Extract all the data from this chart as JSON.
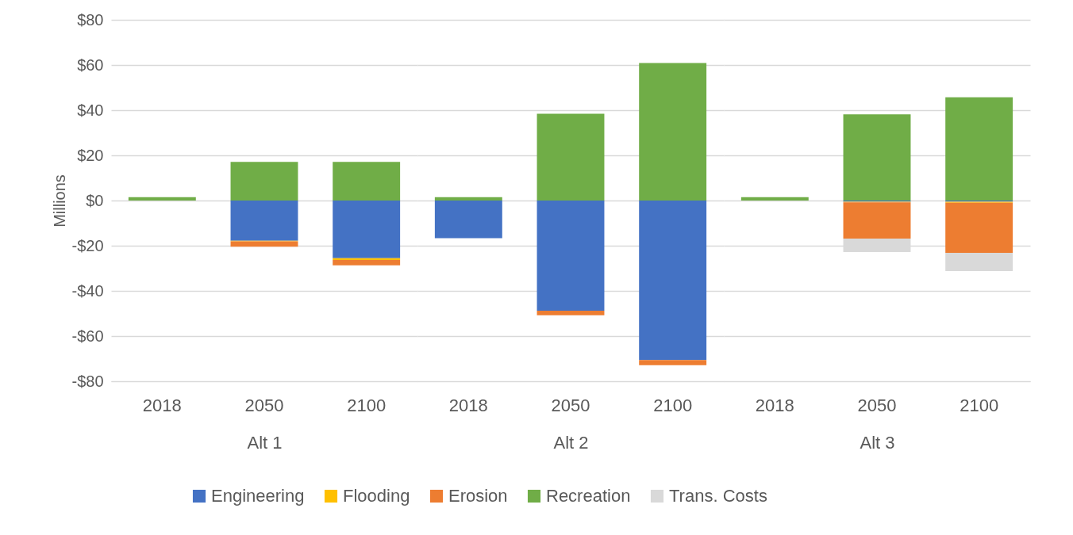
{
  "chart_data": [
    {
      "type": "bar",
      "stacked": true,
      "xlabel": "Alt 1",
      "ylabel": "Millions",
      "categories": [
        "2018",
        "2050",
        "2100"
      ],
      "ylim": [
        -80,
        80
      ],
      "yticks": [
        {
          "value": -80,
          "label": "-$80"
        },
        {
          "value": -60,
          "label": "-$60"
        },
        {
          "value": -40,
          "label": "-$40"
        },
        {
          "value": -20,
          "label": "-$20"
        },
        {
          "value": 0,
          "label": "$0"
        },
        {
          "value": 20,
          "label": "$20"
        },
        {
          "value": 40,
          "label": "$40"
        },
        {
          "value": 60,
          "label": "$60"
        },
        {
          "value": 80,
          "label": "$80"
        }
      ],
      "grid": "y",
      "legend": "bottom",
      "series": [
        {
          "name": "Engineering",
          "color": "#4472c4",
          "values": [
            null,
            -17.8,
            -25.5
          ]
        },
        {
          "name": "Flooding",
          "color": "#ffc000",
          "values": [
            null,
            -0.3,
            -0.8
          ]
        },
        {
          "name": "Erosion",
          "color": "#ed7d31",
          "values": [
            null,
            -2.3,
            -2.4
          ]
        },
        {
          "name": "Recreation",
          "color": "#70ad47",
          "values": [
            1.5,
            17.1,
            17.1
          ]
        },
        {
          "name": "Trans. Costs",
          "color": "#d9d9d9",
          "values": [
            null,
            null,
            null
          ]
        }
      ]
    },
    {
      "type": "bar",
      "stacked": true,
      "xlabel": "Alt 2",
      "categories": [
        "2018",
        "2050",
        "2100"
      ],
      "ylim": [
        -80,
        80
      ],
      "grid": "y",
      "tick_labels": "x",
      "series": [
        {
          "color": "#4472c4",
          "values": [
            -16.7,
            -48.8,
            -70.6
          ]
        },
        {
          "color": "#ed7d31",
          "values": [
            null,
            -2.0,
            -2.3
          ]
        },
        {
          "color": "#70ad47",
          "values": [
            1.5,
            38.4,
            60.9
          ]
        }
      ]
    },
    {
      "type": "bar",
      "stacked": true,
      "xlabel": "Alt 3",
      "categories": [
        "2018",
        "2050",
        "2100"
      ],
      "ylim": [
        -80,
        80
      ],
      "grid": "y",
      "tick_labels": "x",
      "series": [
        {
          "color": "#4472c4",
          "values": [
            null,
            -0.5,
            -0.5
          ]
        },
        {
          "color": "#ffc000",
          "values": [
            null,
            -0.3,
            -0.5
          ]
        },
        {
          "color": "#ed7d31",
          "values": [
            null,
            -16.0,
            -22.2
          ]
        },
        {
          "color": "#70ad47",
          "values": [
            1.5,
            38.2,
            45.7
          ]
        },
        {
          "color": "#d9d9d9",
          "values": [
            null,
            -6,
            -8
          ]
        }
      ]
    }
  ]
}
